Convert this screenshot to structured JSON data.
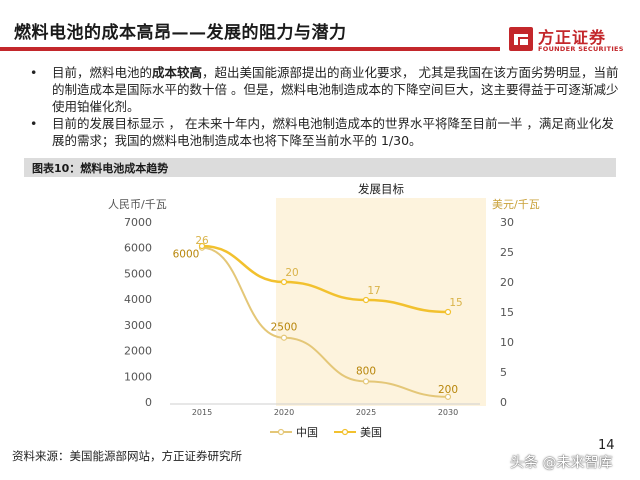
{
  "header": {
    "title": "燃料电池的成本高昂——发展的阻力与潜力",
    "logo_cn": "方正证券",
    "logo_en": "FOUNDER SECURITIES"
  },
  "bullets": [
    {
      "pre": "目前，燃料电池的",
      "bold": "成本较高",
      "post": "，超出美国能源部提出的商业化要求， 尤其是我国在该方面劣势明显，当前的制造成本是国际水平的数十倍 。但是，燃料电池制造成本的下降空间巨大，这主要得益于可逐渐减少使用铂催化剂。"
    },
    {
      "pre": "目前的发展目标显示 ， 在未来十年内，燃料电池制造成本的世界水平将降至目前一半 ，满足商业化发展的需求；我国的燃料电池制造成本也将下降至当前水平的   1/30。",
      "bold": "",
      "post": ""
    }
  ],
  "figure": {
    "title": "图表10：燃料电池成本趋势"
  },
  "chart_data": {
    "type": "line",
    "annotation": "发展目标",
    "x": [
      "2015",
      "2020",
      "2025",
      "2030"
    ],
    "ylabel_left": "人民币/千瓦",
    "ylabel_right": "美元/千瓦",
    "ylim_left": [
      0,
      7000
    ],
    "ylim_right": [
      0,
      30
    ],
    "yticks_left": [
      0,
      1000,
      2000,
      3000,
      4000,
      5000,
      6000,
      7000
    ],
    "yticks_right": [
      0,
      5,
      10,
      15,
      20,
      25,
      30
    ],
    "series": [
      {
        "name": "中国",
        "axis": "left",
        "values": [
          6000,
          2500,
          800,
          200
        ],
        "labels": [
          "6000",
          "2500",
          "800",
          "200"
        ],
        "color": "#e4c778"
      },
      {
        "name": "美国",
        "axis": "right",
        "values": [
          26,
          20,
          17,
          15
        ],
        "labels": [
          "26",
          "20",
          "17",
          "15"
        ],
        "color": "#f2c12e"
      }
    ],
    "legend_position": "bottom",
    "highlight_range": [
      "2020",
      "2030"
    ],
    "highlight_color": "#fdf3dd"
  },
  "footer": {
    "source": "资料来源：美国能源部网站，方正证券研究所",
    "page": "14",
    "watermark": "头条 @未来智库"
  }
}
